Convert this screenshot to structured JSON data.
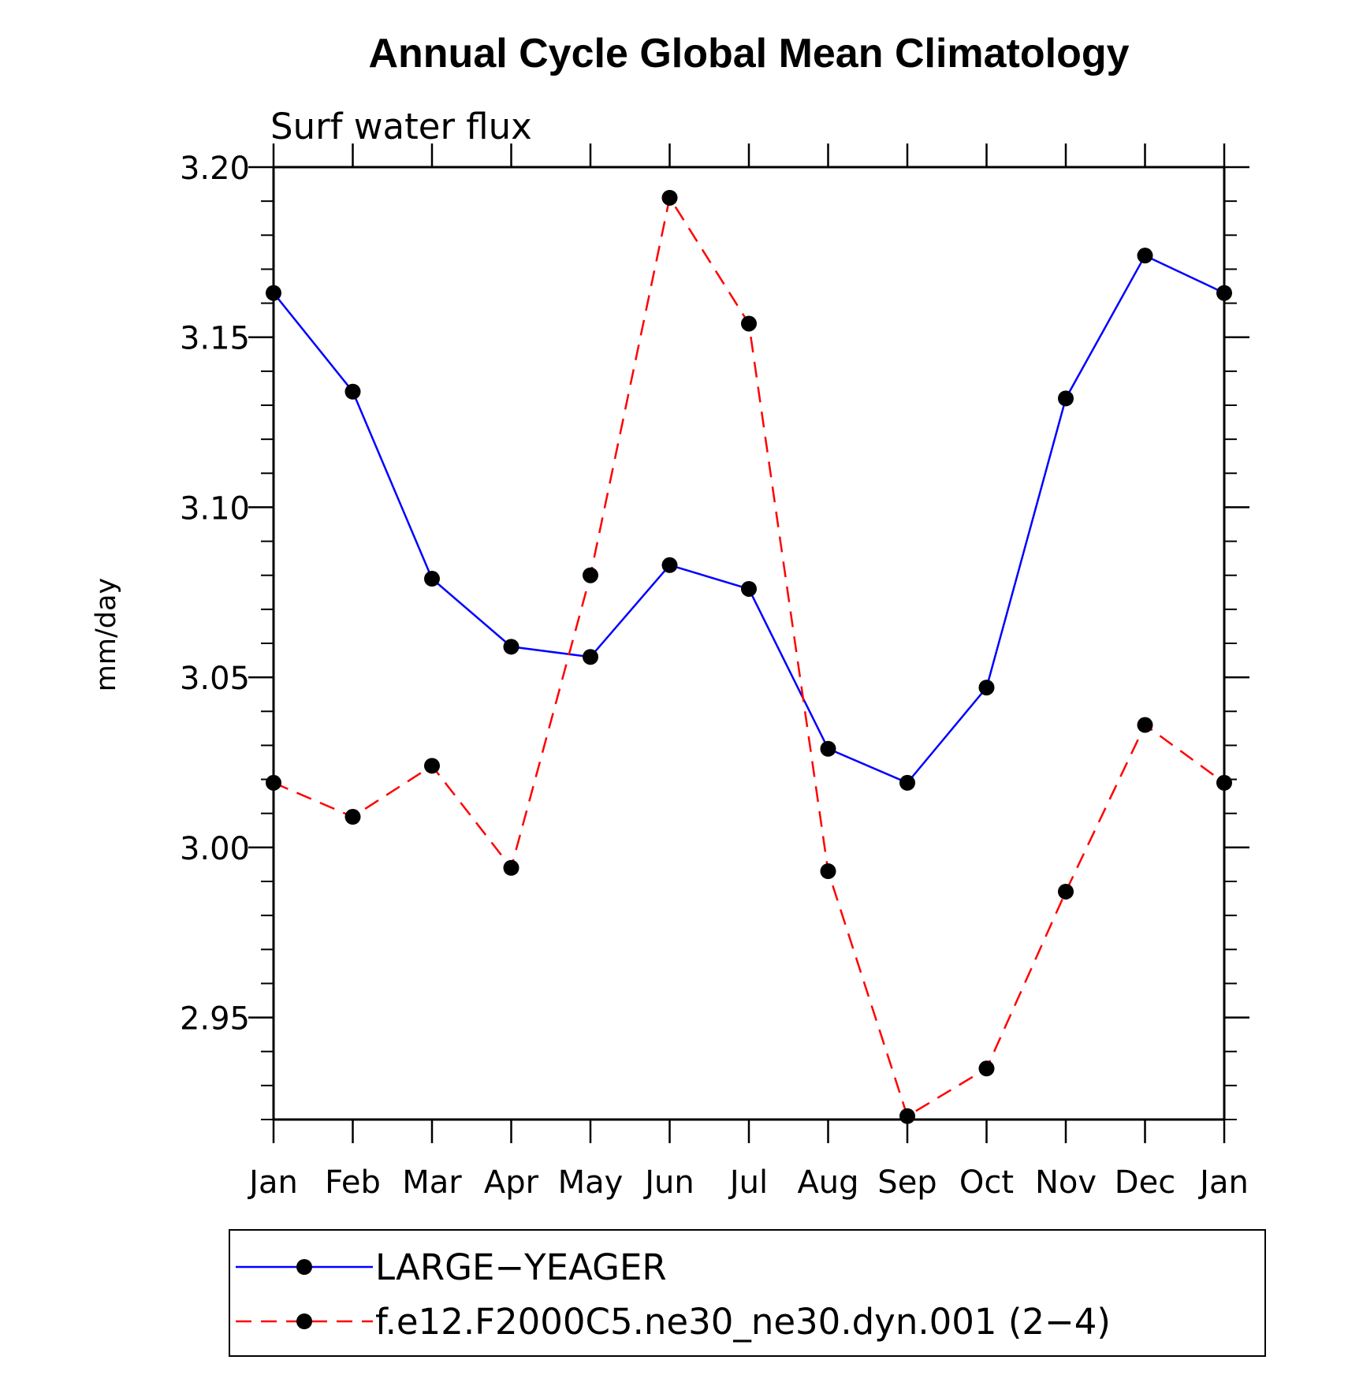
{
  "chart_data": {
    "type": "line",
    "title": "Annual Cycle Global Mean Climatology",
    "subtitle": "Surf  water  flux",
    "xlabel": "",
    "ylabel": "mm/day",
    "categories": [
      "Jan",
      "Feb",
      "Mar",
      "Apr",
      "May",
      "Jun",
      "Jul",
      "Aug",
      "Sep",
      "Oct",
      "Nov",
      "Dec",
      "Jan"
    ],
    "ylim": [
      2.92,
      3.2
    ],
    "yticks": [
      2.95,
      3.0,
      3.05,
      3.1,
      3.15,
      3.2
    ],
    "ytick_labels": [
      "2.95",
      "3.00",
      "3.05",
      "3.10",
      "3.15",
      "3.20"
    ],
    "legend_position": "bottom",
    "series": [
      {
        "name": "LARGE−YEAGER",
        "color": "#0000ff",
        "line_style": "solid",
        "marker": "filled-circle",
        "values": [
          3.163,
          3.134,
          3.079,
          3.059,
          3.056,
          3.083,
          3.076,
          3.029,
          3.019,
          3.047,
          3.132,
          3.174,
          3.163
        ]
      },
      {
        "name": "f.e12.F2000C5.ne30_ne30.dyn.001 (2−4)",
        "color": "#ff0000",
        "line_style": "dashed",
        "marker": "filled-circle",
        "values": [
          3.019,
          3.009,
          3.024,
          2.994,
          3.08,
          3.191,
          3.154,
          2.993,
          2.921,
          2.935,
          2.987,
          3.036,
          3.019
        ]
      }
    ]
  }
}
